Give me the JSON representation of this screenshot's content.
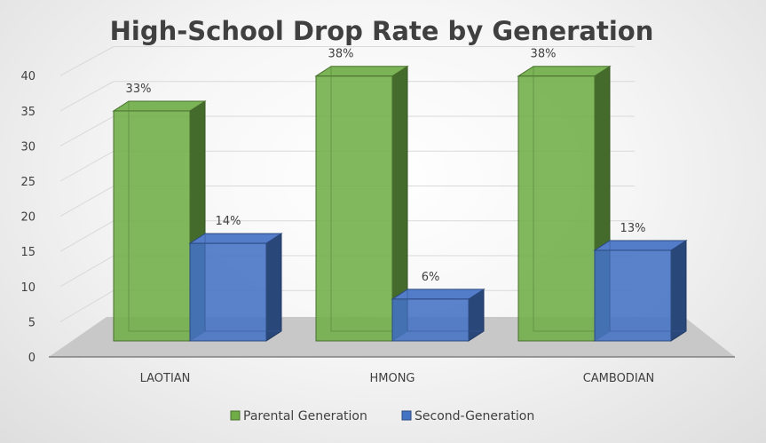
{
  "chart_data": {
    "type": "bar",
    "title": "High-School Drop Rate by Generation",
    "categories": [
      "LAOTIAN",
      "HMONG",
      "CAMBODIAN"
    ],
    "series": [
      {
        "name": "Parental Generation",
        "values": [
          33,
          38,
          38
        ],
        "labels": [
          "33%",
          "38%",
          "38%"
        ],
        "color": "#70ad47"
      },
      {
        "name": "Second-Generation",
        "values": [
          14,
          6,
          13
        ],
        "labels": [
          "14%",
          "6%",
          "13%"
        ],
        "color": "#4472c4"
      }
    ],
    "xlabel": "",
    "ylabel": "",
    "ylim": [
      0,
      40
    ],
    "yticks": [
      "0",
      "5",
      "10",
      "15",
      "20",
      "25",
      "30",
      "35",
      "40"
    ],
    "grid": true,
    "legend_position": "bottom"
  }
}
